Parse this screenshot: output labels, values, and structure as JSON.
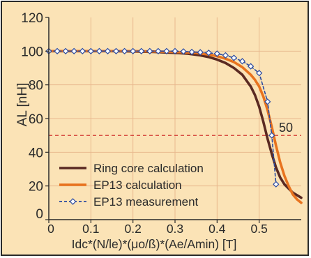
{
  "chart_data": {
    "type": "line",
    "title": "",
    "xlabel": "Idc*(N/le)*(μo/ß)*(Ae/Amin) [T]",
    "ylabel": "AL [nH]",
    "xlim": [
      0,
      0.6
    ],
    "ylim": [
      0,
      120
    ],
    "x_ticks": [
      "0",
      "0.1",
      "0.2",
      "0.3",
      "0.4",
      "0.5"
    ],
    "y_ticks": [
      "0",
      "20",
      "40",
      "60",
      "80",
      "100",
      "120"
    ],
    "grid": true,
    "legend_position": "bottom-left",
    "reference_line": {
      "y": 50,
      "label": "50",
      "color": "#cc1f1f",
      "style": "dashed"
    },
    "series": [
      {
        "name": "Ring core calculation",
        "color": "#5a2a22",
        "style": "solid",
        "x": [
          0,
          0.05,
          0.1,
          0.15,
          0.2,
          0.25,
          0.3,
          0.33,
          0.36,
          0.38,
          0.4,
          0.42,
          0.44,
          0.46,
          0.48,
          0.49,
          0.5,
          0.51,
          0.52,
          0.53,
          0.54,
          0.55,
          0.56,
          0.58,
          0.6
        ],
        "values": [
          100,
          100,
          100,
          100,
          99.8,
          99.5,
          99,
          98.5,
          97.5,
          96.5,
          95,
          93,
          90,
          86,
          79,
          74,
          67,
          58,
          48,
          39,
          31,
          25,
          21,
          16,
          13
        ]
      },
      {
        "name": "EP13 calculation",
        "color": "#e8731e",
        "style": "solid",
        "x": [
          0,
          0.05,
          0.1,
          0.15,
          0.2,
          0.25,
          0.3,
          0.35,
          0.38,
          0.4,
          0.42,
          0.44,
          0.46,
          0.48,
          0.49,
          0.5,
          0.51,
          0.52,
          0.53,
          0.54,
          0.55,
          0.56,
          0.57,
          0.58,
          0.59,
          0.6
        ],
        "values": [
          100,
          100,
          100,
          100,
          100,
          99.8,
          99.5,
          99,
          98,
          97,
          95.5,
          93.5,
          90.5,
          86,
          83,
          79,
          73,
          65,
          55,
          44,
          34,
          26,
          20,
          15,
          12,
          10
        ]
      },
      {
        "name": "EP13 measurement",
        "color": "#2a4aa0",
        "style": "dashed",
        "marker": "diamond",
        "x": [
          0,
          0.02,
          0.04,
          0.06,
          0.08,
          0.1,
          0.12,
          0.14,
          0.16,
          0.18,
          0.2,
          0.22,
          0.24,
          0.26,
          0.28,
          0.3,
          0.32,
          0.34,
          0.36,
          0.38,
          0.4,
          0.42,
          0.44,
          0.46,
          0.48,
          0.5,
          0.52,
          0.53,
          0.54
        ],
        "values": [
          100,
          100,
          100,
          100,
          100,
          100,
          100,
          100,
          100,
          100,
          100,
          100,
          100,
          100,
          100,
          100,
          99.8,
          99.5,
          99.3,
          99,
          98.5,
          97.5,
          96,
          94,
          91,
          87,
          70,
          50,
          21
        ]
      }
    ]
  }
}
